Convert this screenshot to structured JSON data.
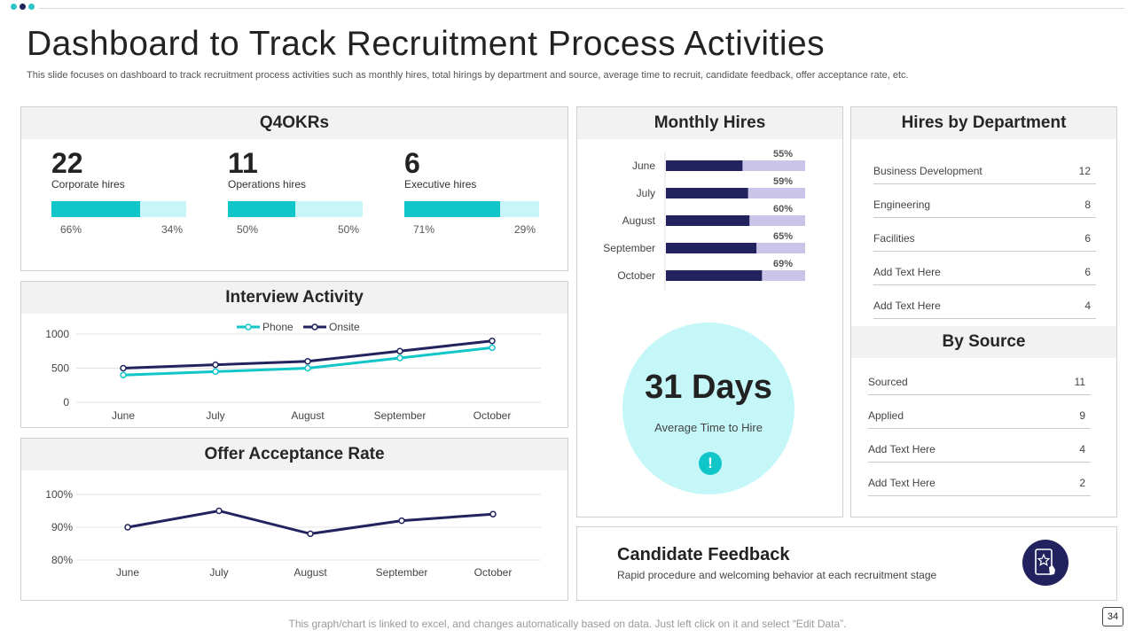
{
  "colors": {
    "teal": "#10c6c9",
    "teal_light": "#c8f6f8",
    "navy": "#22235e",
    "lavender": "#c9c4e8",
    "dot1": "#2ec4c8",
    "dot2": "#22235e",
    "dot3": "#2ec4c8"
  },
  "header": {
    "title": "Dashboard to Track Recruitment Process Activities",
    "subtitle": "This slide focuses on dashboard to track recruitment process activities such as monthly hires, total hirings by department and source, average time to recruit, candidate feedback, offer acceptance rate, etc."
  },
  "okrs": {
    "title": "Q4OKRs",
    "items": [
      {
        "number": "22",
        "label": "Corporate hires",
        "fill_percent": 66,
        "left_pct": "66%",
        "right_pct": "34%"
      },
      {
        "number": "11",
        "label": "Operations hires",
        "fill_percent": 50,
        "left_pct": "50%",
        "right_pct": "50%"
      },
      {
        "number": "6",
        "label": "Executive hires",
        "fill_percent": 71,
        "left_pct": "71%",
        "right_pct": "29%"
      }
    ]
  },
  "interview": {
    "title": "Interview Activity",
    "legend": [
      "Phone",
      "Onsite"
    ]
  },
  "offer": {
    "title": "Offer Acceptance Rate"
  },
  "monthly": {
    "title": "Monthly Hires"
  },
  "department": {
    "title": "Hires by Department",
    "rows": [
      {
        "label": "Business Development",
        "value": "12"
      },
      {
        "label": "Engineering",
        "value": "8"
      },
      {
        "label": "Facilities",
        "value": "6"
      },
      {
        "label": "Add Text Here",
        "value": "6"
      },
      {
        "label": "Add Text Here",
        "value": "4"
      }
    ]
  },
  "source": {
    "title": "By Source",
    "rows": [
      {
        "label": "Sourced",
        "value": "11"
      },
      {
        "label": "Applied",
        "value": "9"
      },
      {
        "label": "Add Text Here",
        "value": "4"
      },
      {
        "label": "Add Text Here",
        "value": "2"
      }
    ]
  },
  "time_to_hire": {
    "value": "31 Days",
    "label": "Average Time to Hire",
    "icon": "alert-icon",
    "icon_glyph": "!"
  },
  "feedback": {
    "title": "Candidate Feedback",
    "subtitle": "Rapid procedure and welcoming behavior at each recruitment stage",
    "icon": "tablet-star-icon"
  },
  "footer": {
    "note": "This graph/chart is linked to excel,  and changes automatically based on data. Just left click on it and select “Edit Data”.",
    "page": "34"
  },
  "chart_data": [
    {
      "id": "interview",
      "type": "line",
      "title": "Interview Activity",
      "categories": [
        "June",
        "July",
        "August",
        "September",
        "October"
      ],
      "series": [
        {
          "name": "Phone",
          "values": [
            400,
            450,
            500,
            650,
            800
          ]
        },
        {
          "name": "Onsite",
          "values": [
            500,
            550,
            600,
            750,
            900
          ]
        }
      ],
      "yticks": [
        "0",
        "500",
        "1000"
      ],
      "ylim": [
        0,
        1000
      ]
    },
    {
      "id": "offer",
      "type": "line",
      "title": "Offer Acceptance Rate",
      "categories": [
        "June",
        "July",
        "August",
        "September",
        "October"
      ],
      "series": [
        {
          "name": "Offer Acceptance Rate",
          "values": [
            90,
            95,
            88,
            92,
            94
          ]
        }
      ],
      "yticks": [
        "80%",
        "90%",
        "100%"
      ],
      "ylim": [
        80,
        100
      ]
    },
    {
      "id": "monthly",
      "type": "bar",
      "title": "Monthly Hires",
      "categories": [
        "June",
        "July",
        "August",
        "September",
        "October"
      ],
      "values": [
        55,
        59,
        60,
        65,
        69
      ],
      "labels": [
        "55%",
        "59%",
        "60%",
        "65%",
        "69%"
      ],
      "ylim": [
        0,
        100
      ]
    }
  ]
}
